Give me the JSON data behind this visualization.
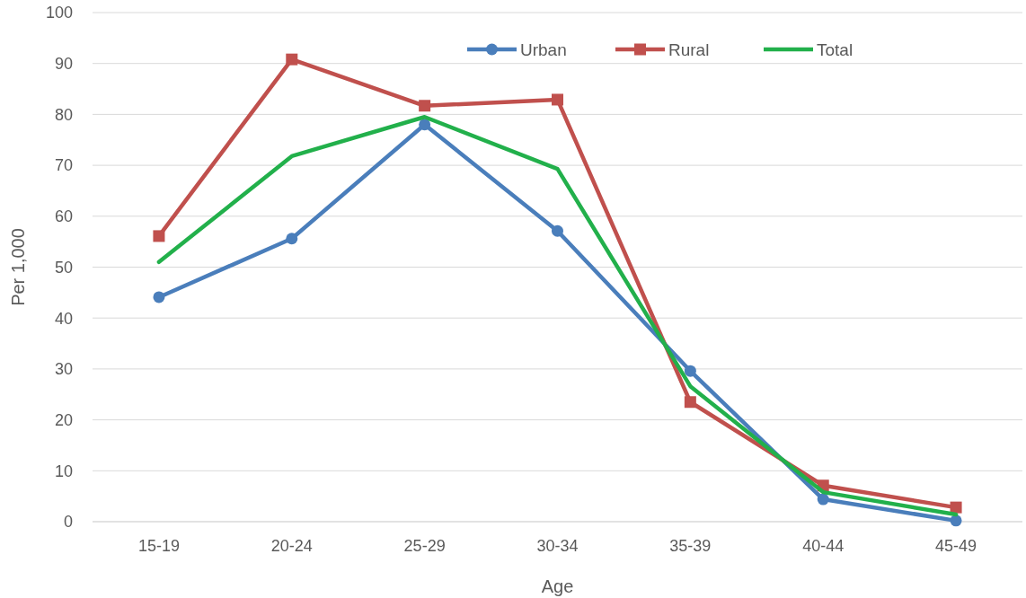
{
  "chart_data": {
    "type": "line",
    "xlabel": "Age",
    "ylabel": "Per 1,000",
    "categories": [
      "15-19",
      "20-24",
      "25-29",
      "30-34",
      "35-39",
      "40-44",
      "45-49"
    ],
    "series": [
      {
        "name": "Urban",
        "color": "#4a7ebb",
        "marker": "circle",
        "values": [
          44.1,
          55.6,
          78,
          57.1,
          29.6,
          4.4,
          0.2
        ]
      },
      {
        "name": "Rural",
        "color": "#c0504d",
        "marker": "square",
        "values": [
          56.1,
          90.8,
          81.7,
          82.9,
          23.5,
          7.1,
          2.8
        ]
      },
      {
        "name": "Total",
        "color": "#22b04b",
        "marker": "none",
        "values": [
          51,
          71.8,
          79.5,
          69.3,
          26.6,
          5.8,
          1.4
        ]
      }
    ],
    "ylim": [
      0,
      100
    ],
    "yticks": [
      0,
      10,
      20,
      30,
      40,
      50,
      60,
      70,
      80,
      90,
      100
    ],
    "grid": "y",
    "legend": "top right"
  }
}
